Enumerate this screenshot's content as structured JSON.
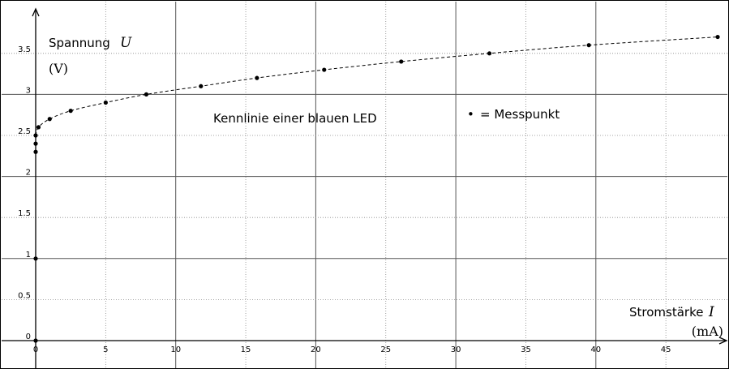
{
  "chart_data": {
    "type": "scatter",
    "title": "Kennlinie einer blauen LED",
    "y_axis": {
      "label": "Spannung",
      "symbol": "U",
      "unit": "(V)",
      "range": [
        0,
        3.8
      ],
      "ticks": [
        0,
        0.5,
        1,
        1.5,
        2,
        2.5,
        3,
        3.5
      ]
    },
    "x_axis": {
      "label": "Stromstärke",
      "symbol": "I",
      "unit": "(mA)",
      "range": [
        -0.5,
        49.5
      ],
      "ticks": [
        0,
        5,
        10,
        15,
        20,
        25,
        30,
        35,
        40,
        45
      ]
    },
    "legend": {
      "marker": "•",
      "text": "= Messpunkt"
    },
    "grid": {
      "major": "solid",
      "minor": "dotted"
    },
    "points": [
      {
        "x": 0,
        "y": 0
      },
      {
        "x": 0,
        "y": 1
      },
      {
        "x": 0,
        "y": 2.3
      },
      {
        "x": 0,
        "y": 2.4
      },
      {
        "x": 0,
        "y": 2.5
      },
      {
        "x": 0.2,
        "y": 2.6
      },
      {
        "x": 1,
        "y": 2.7
      },
      {
        "x": 2.5,
        "y": 2.8
      },
      {
        "x": 5,
        "y": 2.9
      },
      {
        "x": 7.9,
        "y": 3.0
      },
      {
        "x": 11.8,
        "y": 3.1
      },
      {
        "x": 15.8,
        "y": 3.2
      },
      {
        "x": 20.6,
        "y": 3.3
      },
      {
        "x": 26.1,
        "y": 3.4
      },
      {
        "x": 32.4,
        "y": 3.5
      },
      {
        "x": 39.5,
        "y": 3.6
      },
      {
        "x": 48.7,
        "y": 3.7
      }
    ],
    "fit_curve": "dashed"
  }
}
